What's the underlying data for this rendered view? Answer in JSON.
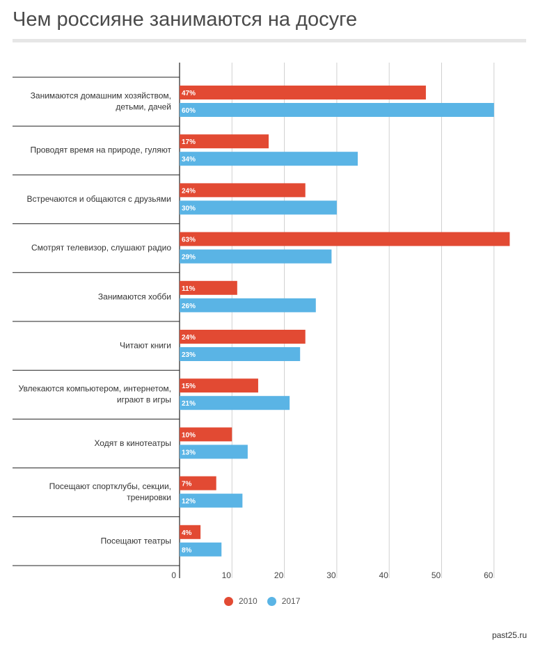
{
  "title": "Чем россияне занимаются на досуге",
  "source": "past25.ru",
  "colors": {
    "s2010": "#e24a33",
    "s2017": "#5ab4e5"
  },
  "chart_data": {
    "type": "bar",
    "orientation": "horizontal",
    "title": "Чем россияне занимаются на досуге",
    "categories": [
      [
        "Занимаются домашним хозяйством,",
        "детьми, дачей"
      ],
      [
        "Проводят время на природе, гуляют"
      ],
      [
        "Встречаются и общаются с друзьями"
      ],
      [
        "Смотрят телевизор, слушают радио"
      ],
      [
        "Занимаются хобби"
      ],
      [
        "Читают книги"
      ],
      [
        "Увлекаются компьютером, интернетом,",
        "играют в игры"
      ],
      [
        "Ходят в кинотеатры"
      ],
      [
        "Посещают спортклубы, секции,",
        "тренировки"
      ],
      [
        "Посещают театры"
      ]
    ],
    "series": [
      {
        "name": "2010",
        "values": [
          47,
          17,
          24,
          63,
          11,
          24,
          15,
          10,
          7,
          4
        ]
      },
      {
        "name": "2017",
        "values": [
          60,
          34,
          30,
          29,
          26,
          23,
          21,
          13,
          12,
          8
        ]
      }
    ],
    "value_suffix": "%",
    "xlim": [
      0,
      64
    ],
    "xticks": [
      0,
      10,
      20,
      30,
      40,
      50,
      60
    ],
    "grid": true,
    "legend": "bottom-center"
  }
}
